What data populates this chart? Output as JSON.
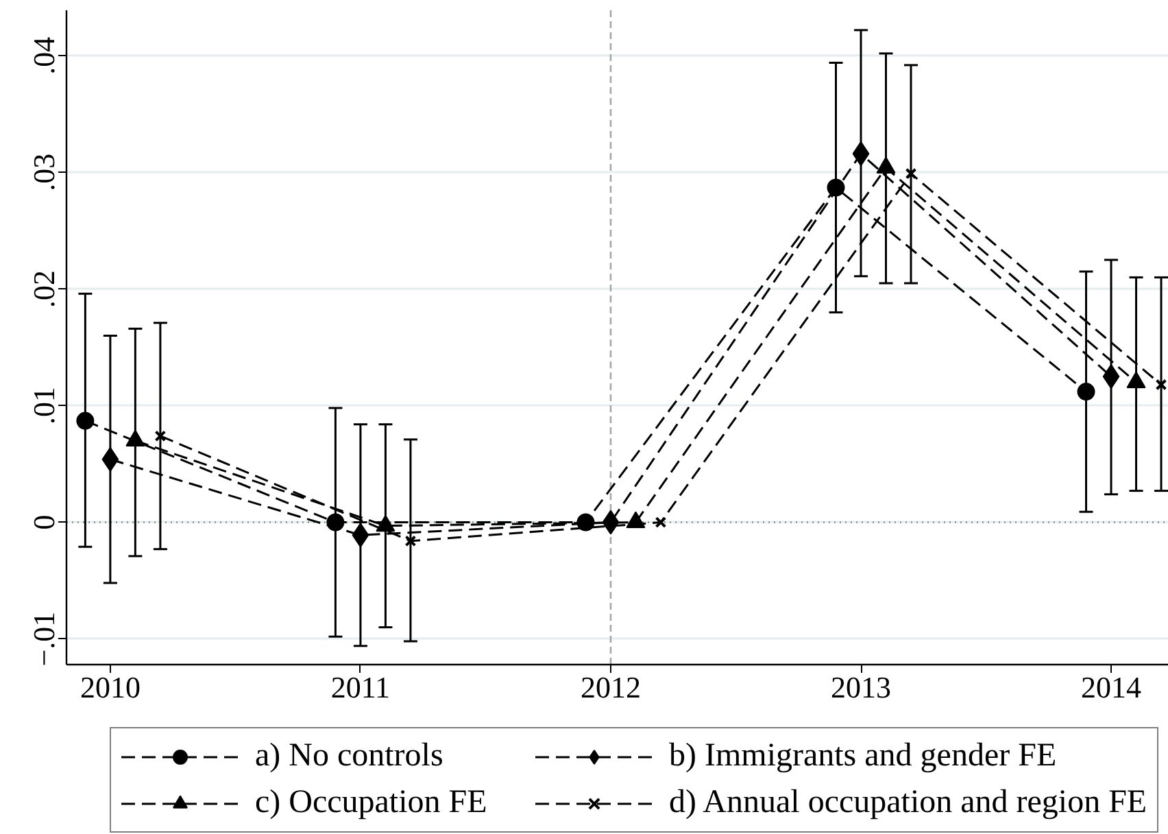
{
  "chart_data": {
    "type": "line",
    "xlim": [
      2009.825,
      2014.23
    ],
    "xticks": [
      2010,
      2011,
      2012,
      2013,
      2014
    ],
    "ylim": [
      -0.0122,
      0.0439
    ],
    "yticks": [
      {
        "value": -0.01,
        "label": "−.01"
      },
      0,
      {
        "value": 0.01,
        "label": ".01"
      },
      {
        "value": 0.02,
        "label": ".02"
      },
      {
        "value": 0.03,
        "label": ".03"
      },
      {
        "value": 0.04,
        "label": ".04"
      }
    ],
    "grid": "y",
    "legend": "bottom",
    "line_style": "dashed",
    "ref_lines": [
      {
        "axis": "x",
        "value": 2012,
        "color": "#a6a6a6",
        "line_style": "dashed"
      },
      {
        "axis": "y",
        "value": 0,
        "color": "#8c8c8c",
        "line_style": "dotted"
      }
    ],
    "series": [
      {
        "name": "a) No controls",
        "color": "#000000",
        "marker": "circle",
        "x": [
          2009.9,
          2010.9,
          2011.9,
          2012.9,
          2013.9
        ],
        "values": [
          0.0087,
          0.0,
          0.0,
          0.0287,
          0.0112
        ],
        "errors": [
          [
            -0.0021,
            0.0196
          ],
          [
            -0.0098,
            0.0098
          ],
          null,
          [
            0.018,
            0.0394
          ],
          [
            0.0009,
            0.0215
          ]
        ]
      },
      {
        "name": "b) Immigrants and gender FE",
        "color": "#000000",
        "marker": "diamond",
        "x": [
          2010,
          2011,
          2012,
          2013,
          2014
        ],
        "values": [
          0.0054,
          -0.0011,
          0.0,
          0.0316,
          0.0125
        ],
        "errors": [
          [
            -0.0052,
            0.016
          ],
          [
            -0.0106,
            0.0084
          ],
          null,
          [
            0.0211,
            0.0422
          ],
          [
            0.0024,
            0.0225
          ]
        ]
      },
      {
        "name": "c) Occupation FE",
        "color": "#000000",
        "marker": "triangle",
        "x": [
          2010.1,
          2011.1,
          2012.1,
          2013.1,
          2014.1
        ],
        "values": [
          0.007,
          -0.0003,
          0.0,
          0.0304,
          0.012
        ],
        "errors": [
          [
            -0.0029,
            0.0166
          ],
          [
            -0.009,
            0.0084
          ],
          null,
          [
            0.0205,
            0.0402
          ],
          [
            0.0027,
            0.021
          ]
        ]
      },
      {
        "name": "d) Annual occupation and region FE",
        "color": "#000000",
        "marker": "cross",
        "x": [
          2010.2,
          2011.2,
          2012.2,
          2013.2,
          2014.2
        ],
        "values": [
          0.0074,
          -0.0016,
          0.0,
          0.0299,
          0.0118
        ],
        "errors": [
          [
            -0.0023,
            0.0171
          ],
          [
            -0.0102,
            0.0071
          ],
          null,
          [
            0.0205,
            0.0392
          ],
          [
            0.0027,
            0.021
          ]
        ]
      }
    ]
  }
}
